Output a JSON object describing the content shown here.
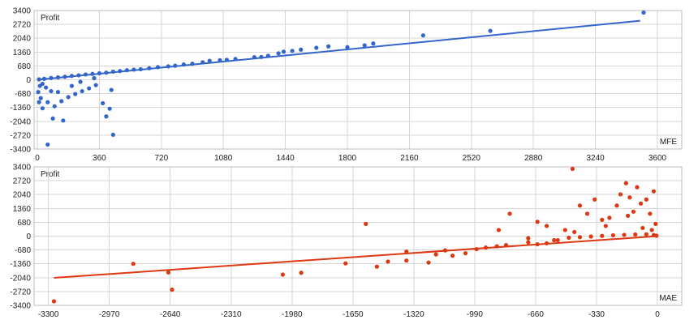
{
  "chart_data": [
    {
      "type": "scatter",
      "ylabel": "Profit",
      "xlabel": "MFE",
      "xlim": [
        0,
        3600
      ],
      "ylim": [
        -3400,
        3400
      ],
      "x_ticks": [
        "0",
        "360",
        "720",
        "1080",
        "1440",
        "1800",
        "2160",
        "2520",
        "2880",
        "3240",
        "3600"
      ],
      "y_ticks": [
        "3400",
        "2720",
        "2040",
        "1360",
        "680",
        "0",
        "-680",
        "-1360",
        "-2040",
        "-2720",
        "-3400"
      ],
      "grid": true,
      "color": "#3366cc",
      "trendline": [
        [
          0,
          0
        ],
        [
          3500,
          2900
        ]
      ],
      "points": [
        [
          3520,
          3300
        ],
        [
          2630,
          2400
        ],
        [
          2240,
          2180
        ],
        [
          1950,
          1780
        ],
        [
          1900,
          1690
        ],
        [
          1800,
          1600
        ],
        [
          1690,
          1640
        ],
        [
          1620,
          1570
        ],
        [
          1530,
          1480
        ],
        [
          1480,
          1420
        ],
        [
          1430,
          1380
        ],
        [
          1400,
          1300
        ],
        [
          1340,
          1180
        ],
        [
          1300,
          1120
        ],
        [
          1260,
          1110
        ],
        [
          1150,
          1020
        ],
        [
          1100,
          980
        ],
        [
          1060,
          960
        ],
        [
          1000,
          930
        ],
        [
          960,
          860
        ],
        [
          900,
          790
        ],
        [
          850,
          750
        ],
        [
          800,
          690
        ],
        [
          760,
          660
        ],
        [
          700,
          620
        ],
        [
          650,
          570
        ],
        [
          600,
          520
        ],
        [
          560,
          500
        ],
        [
          520,
          470
        ],
        [
          480,
          430
        ],
        [
          440,
          400
        ],
        [
          400,
          350
        ],
        [
          360,
          320
        ],
        [
          320,
          290
        ],
        [
          280,
          260
        ],
        [
          240,
          220
        ],
        [
          200,
          190
        ],
        [
          160,
          150
        ],
        [
          120,
          120
        ],
        [
          80,
          90
        ],
        [
          40,
          50
        ],
        [
          10,
          20
        ],
        [
          30,
          -200
        ],
        [
          50,
          -380
        ],
        [
          80,
          -560
        ],
        [
          20,
          -900
        ],
        [
          60,
          -1100
        ],
        [
          100,
          -1300
        ],
        [
          140,
          -1050
        ],
        [
          180,
          -850
        ],
        [
          220,
          -700
        ],
        [
          260,
          -560
        ],
        [
          300,
          -420
        ],
        [
          340,
          -260
        ],
        [
          30,
          -1400
        ],
        [
          90,
          -1900
        ],
        [
          150,
          -2000
        ],
        [
          380,
          -1150
        ],
        [
          400,
          -1800
        ],
        [
          420,
          -1420
        ],
        [
          440,
          -2700
        ],
        [
          430,
          -500
        ],
        [
          60,
          -3180
        ],
        [
          10,
          -1100
        ],
        [
          5,
          -600
        ],
        [
          120,
          -600
        ],
        [
          200,
          -300
        ],
        [
          250,
          -100
        ],
        [
          330,
          80
        ],
        [
          15,
          -300
        ]
      ]
    },
    {
      "type": "scatter",
      "ylabel": "Profit",
      "xlabel": "MAE",
      "xlim": [
        -3360,
        0
      ],
      "ylim": [
        -3400,
        3400
      ],
      "x_ticks": [
        "-3300",
        "-2970",
        "-2640",
        "-2310",
        "-1980",
        "-1650",
        "-1320",
        "-990",
        "-660",
        "-330",
        "0"
      ],
      "y_ticks": [
        "3400",
        "2720",
        "2040",
        "1360",
        "680",
        "0",
        "-680",
        "-1360",
        "-2040",
        "-2720",
        "-3400"
      ],
      "grid": true,
      "color": "#dc3912",
      "trendline": [
        [
          -3270,
          -2050
        ],
        [
          0,
          0
        ]
      ],
      "points": [
        [
          -3270,
          -3200
        ],
        [
          -2840,
          -1360
        ],
        [
          -2650,
          -1780
        ],
        [
          -2630,
          -2630
        ],
        [
          -2030,
          -1890
        ],
        [
          -1930,
          -1800
        ],
        [
          -1690,
          -1340
        ],
        [
          -1520,
          -1500
        ],
        [
          -1580,
          600
        ],
        [
          -1460,
          -1250
        ],
        [
          -1360,
          -760
        ],
        [
          -1360,
          -1200
        ],
        [
          -1240,
          -1300
        ],
        [
          -1200,
          -900
        ],
        [
          -1150,
          -700
        ],
        [
          -1110,
          -960
        ],
        [
          -1040,
          -840
        ],
        [
          -980,
          -640
        ],
        [
          -930,
          -560
        ],
        [
          -820,
          -440
        ],
        [
          -870,
          -500
        ],
        [
          -860,
          300
        ],
        [
          -800,
          1100
        ],
        [
          -650,
          700
        ],
        [
          -600,
          500
        ],
        [
          -560,
          -200
        ],
        [
          -500,
          300
        ],
        [
          -460,
          3300
        ],
        [
          -420,
          1500
        ],
        [
          -380,
          1100
        ],
        [
          -340,
          1800
        ],
        [
          -300,
          800
        ],
        [
          -260,
          900
        ],
        [
          -220,
          1500
        ],
        [
          -200,
          2050
        ],
        [
          -170,
          2600
        ],
        [
          -150,
          1900
        ],
        [
          -130,
          1200
        ],
        [
          -110,
          2400
        ],
        [
          -90,
          1600
        ],
        [
          -60,
          1800
        ],
        [
          -40,
          1100
        ],
        [
          -20,
          2200
        ],
        [
          -10,
          600
        ],
        [
          -700,
          -300
        ],
        [
          -650,
          -400
        ],
        [
          -600,
          -350
        ],
        [
          -540,
          -200
        ],
        [
          -480,
          -80
        ],
        [
          -420,
          -50
        ],
        [
          -360,
          -20
        ],
        [
          -300,
          10
        ],
        [
          -240,
          40
        ],
        [
          -180,
          60
        ],
        [
          -120,
          80
        ],
        [
          -60,
          90
        ],
        [
          -20,
          50
        ],
        [
          -5,
          20
        ],
        [
          -700,
          -100
        ],
        [
          -450,
          200
        ],
        [
          -280,
          500
        ],
        [
          -160,
          1000
        ],
        [
          -80,
          400
        ],
        [
          -30,
          300
        ]
      ]
    }
  ]
}
